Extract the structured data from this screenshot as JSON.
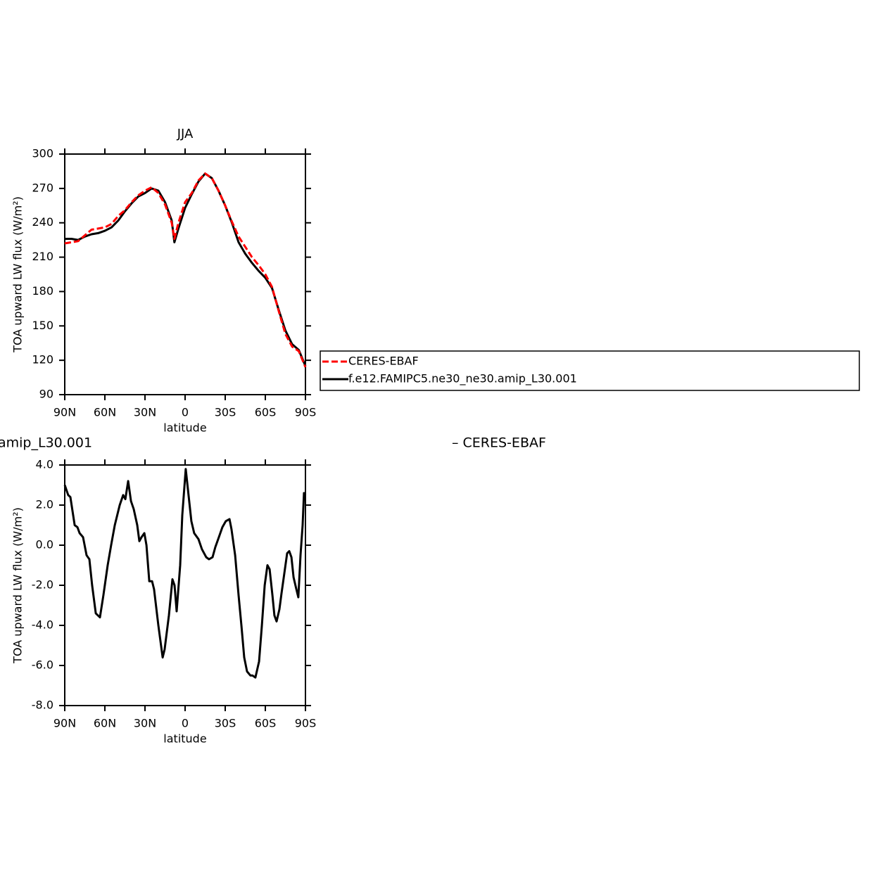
{
  "chart_data": [
    {
      "type": "line",
      "title": "JJA",
      "xlabel": "latitude",
      "ylabel": "TOA upward LW flux (W/m²)",
      "x": [
        90,
        85,
        80,
        75,
        70,
        65,
        60,
        55,
        50,
        45,
        40,
        35,
        30,
        25,
        20,
        15,
        10,
        8,
        5,
        0,
        -5,
        -10,
        -15,
        -20,
        -25,
        -30,
        -35,
        -40,
        -45,
        -50,
        -55,
        -60,
        -65,
        -70,
        -75,
        -80,
        -85,
        -90
      ],
      "series": [
        {
          "name": "CERES-EBAF",
          "color": "#ff0000",
          "line_style": "dashed",
          "values": [
            222,
            223,
            224,
            229,
            234,
            235,
            236,
            239,
            246,
            251,
            258,
            264,
            268,
            271,
            266,
            256,
            240,
            226,
            240,
            258,
            266,
            277,
            283,
            279,
            268,
            255,
            241,
            228,
            219,
            210,
            203,
            195,
            184,
            163,
            143,
            132,
            128,
            114
          ]
        },
        {
          "name": "f.e12.FAMIPC5.ne30_ne30.amip_L30.001",
          "color": "#000000",
          "line_style": "solid",
          "values": [
            226,
            226,
            225,
            228,
            230,
            231,
            233,
            236,
            242,
            250,
            257,
            263,
            266,
            270,
            268,
            258,
            242,
            223,
            235,
            253,
            265,
            276,
            283,
            279,
            268,
            255,
            240,
            223,
            213,
            205,
            198,
            192,
            183,
            164,
            146,
            134,
            129,
            115
          ]
        }
      ],
      "xlim": [
        90,
        -90
      ],
      "xticks": [
        {
          "value": 90,
          "label": "90N"
        },
        {
          "value": 60,
          "label": "60N"
        },
        {
          "value": 30,
          "label": "30N"
        },
        0,
        {
          "value": -30,
          "label": "30S"
        },
        {
          "value": -60,
          "label": "60S"
        },
        {
          "value": -90,
          "label": "90S"
        }
      ],
      "ylim": [
        90,
        300
      ],
      "yticks": [
        90,
        120,
        150,
        180,
        210,
        240,
        270,
        300
      ],
      "legend": "right"
    },
    {
      "type": "line",
      "title_fragments": [
        "amip_L30.001",
        "– CERES-EBAF"
      ],
      "xlabel": "latitude",
      "ylabel": "TOA upward LW flux (W/m²)",
      "x": [
        90,
        87.4,
        85.8,
        82.6,
        80.5,
        78.9,
        76.3,
        73.7,
        71.6,
        69.5,
        66.8,
        63.7,
        61.1,
        57.9,
        55.3,
        52.6,
        48.9,
        46.3,
        44.7,
        42.6,
        40.5,
        38.4,
        35.8,
        34.2,
        32.6,
        30.5,
        28.9,
        26.8,
        24.7,
        23.2,
        20,
        16.8,
        15.3,
        12.1,
        9.5,
        7.9,
        6.3,
        3.7,
        2.1,
        -0.5,
        -2.6,
        -4.7,
        -6.8,
        -10,
        -12.6,
        -15.8,
        -17.9,
        -20.5,
        -22.6,
        -25.8,
        -27.9,
        -30.5,
        -33.2,
        -34.7,
        -37.4,
        -40,
        -42.1,
        -44.2,
        -46.3,
        -48.9,
        -50.5,
        -52.6,
        -55.3,
        -57.4,
        -59.5,
        -61.6,
        -63.2,
        -65.3,
        -66.8,
        -68.4,
        -70.5,
        -72.1,
        -74.2,
        -76.3,
        -77.9,
        -79.5,
        -81.1,
        -83.2,
        -84.7,
        -86.3,
        -87.9,
        -88.9,
        -90
      ],
      "values": [
        3.0,
        2.5,
        2.4,
        1.0,
        0.9,
        0.6,
        0.4,
        -0.5,
        -0.7,
        -2.0,
        -3.4,
        -3.6,
        -2.5,
        -1.0,
        0.0,
        1.0,
        2.0,
        2.5,
        2.3,
        3.2,
        2.2,
        1.8,
        1.0,
        0.2,
        0.4,
        0.6,
        0.0,
        -1.8,
        -1.8,
        -2.2,
        -4.0,
        -5.6,
        -5.2,
        -3.5,
        -1.7,
        -2.0,
        -3.3,
        -1.0,
        1.5,
        3.8,
        2.5,
        1.2,
        0.6,
        0.3,
        -0.2,
        -0.6,
        -0.7,
        -0.6,
        -0.1,
        0.5,
        0.9,
        1.2,
        1.3,
        0.8,
        -0.5,
        -2.5,
        -4.0,
        -5.6,
        -6.3,
        -6.5,
        -6.5,
        -6.6,
        -5.8,
        -4.0,
        -2.0,
        -1.0,
        -1.2,
        -2.5,
        -3.5,
        -3.8,
        -3.2,
        -2.4,
        -1.4,
        -0.4,
        -0.3,
        -0.6,
        -1.6,
        -2.2,
        -2.6,
        -0.5,
        1.0,
        2.6,
        2.5
      ],
      "color": "#000000",
      "xlim": [
        90,
        -90
      ],
      "xticks": [
        {
          "value": 90,
          "label": "90N"
        },
        {
          "value": 60,
          "label": "60N"
        },
        {
          "value": 30,
          "label": "30N"
        },
        0,
        {
          "value": -30,
          "label": "30S"
        },
        {
          "value": -60,
          "label": "60S"
        },
        {
          "value": -90,
          "label": "90S"
        }
      ],
      "ylim": [
        -8,
        4
      ],
      "yticks": [
        {
          "value": 4,
          "label": "4.0"
        },
        {
          "value": 2,
          "label": "2.0"
        },
        {
          "value": 0,
          "label": "0.0"
        },
        {
          "value": -2,
          "label": "-2.0"
        },
        {
          "value": -4,
          "label": "-4.0"
        },
        {
          "value": -6,
          "label": "-6.0"
        },
        {
          "value": -8,
          "label": "-8.0"
        }
      ]
    }
  ]
}
